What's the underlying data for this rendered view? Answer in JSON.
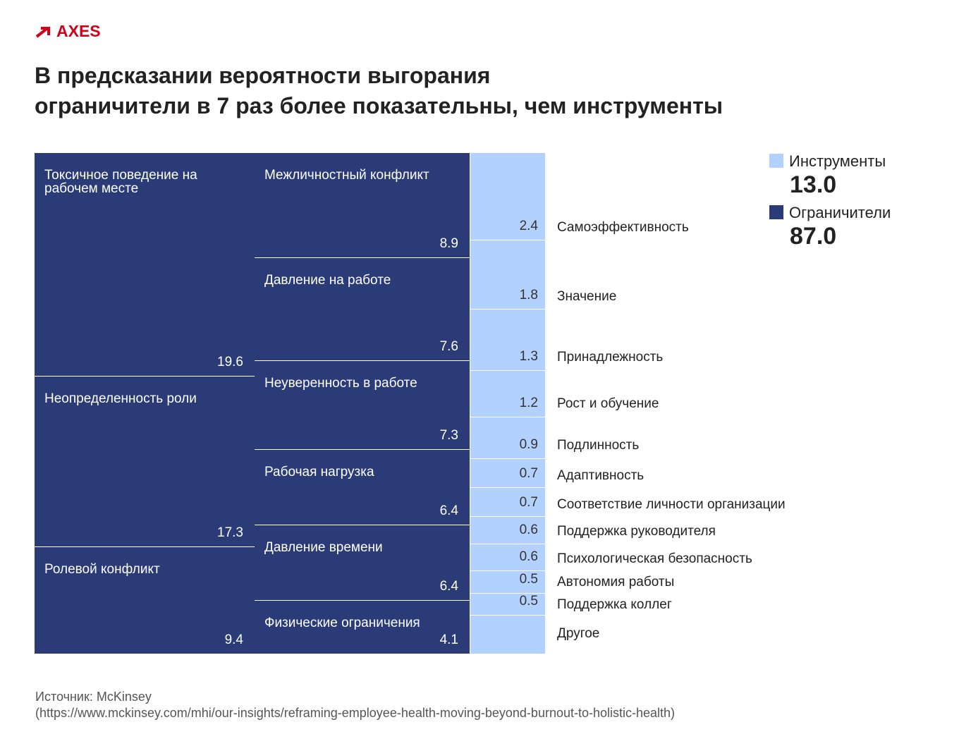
{
  "logo": "AXES",
  "title_line1": "В предсказании вероятности выгорания",
  "title_line2": "ограничители в 7 раз более показательны, чем инструменты",
  "legend": [
    {
      "name": "Инструменты",
      "value": "13.0",
      "color": "#b3d1ff"
    },
    {
      "name": "Ограничители",
      "value": "87.0",
      "color": "#2a3b78"
    }
  ],
  "source_label": "Источник: McKinsey",
  "source_url": "https://www.mckinsey.com/mhi/our-insights/reframing-employee-health-moving-beyond-burnout-to-holistic-health",
  "chart_data": {
    "type": "treemap",
    "groups": [
      {
        "name": "Ограничители",
        "total": 87.0,
        "color": "#2a3b78",
        "items": [
          {
            "label": "Токсичное поведение на рабочем месте",
            "value": 19.6
          },
          {
            "label": "Неопределенность роли",
            "value": 17.3
          },
          {
            "label": "Ролевой конфликт",
            "value": 9.4
          },
          {
            "label": "Межличностный конфликт",
            "value": 8.9
          },
          {
            "label": "Давление на работе",
            "value": 7.6
          },
          {
            "label": "Неуверенность в работе",
            "value": 7.3
          },
          {
            "label": "Рабочая нагрузка",
            "value": 6.4
          },
          {
            "label": "Давление времени",
            "value": 6.4
          },
          {
            "label": "Физические ограничения",
            "value": 4.1
          }
        ]
      },
      {
        "name": "Инструменты",
        "total": 13.0,
        "color": "#b3d1ff",
        "items": [
          {
            "label": "Самоэффективность",
            "value": 2.4
          },
          {
            "label": "Значение",
            "value": 1.8
          },
          {
            "label": "Принадлежность",
            "value": 1.3
          },
          {
            "label": "Рост и обучение",
            "value": 1.2
          },
          {
            "label": "Подлинность",
            "value": 0.9
          },
          {
            "label": "Адаптивность",
            "value": 0.7
          },
          {
            "label": "Соответствие личности организации",
            "value": 0.7
          },
          {
            "label": "Поддержка руководителя",
            "value": 0.6
          },
          {
            "label": "Психологическая безопасность",
            "value": 0.6
          },
          {
            "label": "Автономия работы",
            "value": 0.5
          },
          {
            "label": "Поддержка коллег",
            "value": 0.5
          },
          {
            "label": "Другое",
            "value": null
          }
        ]
      }
    ]
  }
}
